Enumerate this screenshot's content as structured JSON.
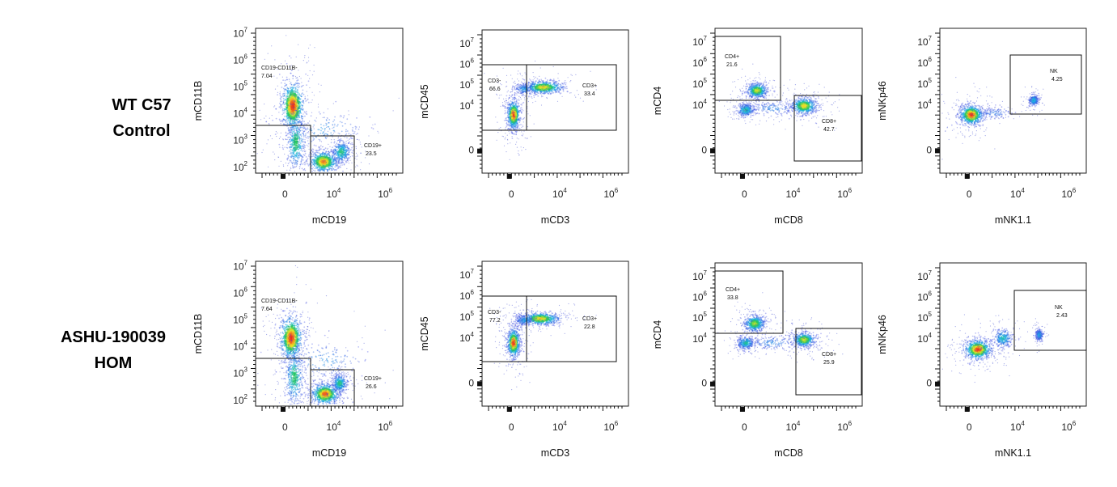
{
  "rows": [
    {
      "label_line1": "WT C57",
      "label_line2": "Control"
    },
    {
      "label_line1": "ASHU-190039",
      "label_line2": "HOM"
    }
  ],
  "chart_data": [
    {
      "type": "scatter",
      "row": 0,
      "panel": 0,
      "xlabel": "mCD19",
      "ylabel": "mCD11B",
      "x_ticks": [
        "0",
        "10^4",
        "10^6"
      ],
      "y_ticks": [
        "10^2",
        "10^3",
        "10^4",
        "10^5",
        "10^6",
        "10^7"
      ],
      "gates": [
        {
          "name": "CD19-CD11B-",
          "value": "7.04"
        },
        {
          "name": "CD19+",
          "value": "23.5"
        }
      ]
    },
    {
      "type": "scatter",
      "row": 0,
      "panel": 1,
      "xlabel": "mCD3",
      "ylabel": "mCD45",
      "x_ticks": [
        "0",
        "10^4",
        "10^6"
      ],
      "y_ticks": [
        "0",
        "10^4",
        "10^5",
        "10^6",
        "10^7"
      ],
      "gates": [
        {
          "name": "CD3-",
          "value": "66.6"
        },
        {
          "name": "CD3+",
          "value": "33.4"
        }
      ]
    },
    {
      "type": "scatter",
      "row": 0,
      "panel": 2,
      "xlabel": "mCD8",
      "ylabel": "mCD4",
      "x_ticks": [
        "0",
        "10^4",
        "10^6"
      ],
      "y_ticks": [
        "0",
        "10^4",
        "10^5",
        "10^6",
        "10^7"
      ],
      "gates": [
        {
          "name": "CD4+",
          "value": "21.6"
        },
        {
          "name": "CD8+",
          "value": "42.7"
        }
      ]
    },
    {
      "type": "scatter",
      "row": 0,
      "panel": 3,
      "xlabel": "mNK1.1",
      "ylabel": "mNKp46",
      "x_ticks": [
        "0",
        "10^4",
        "10^6"
      ],
      "y_ticks": [
        "0",
        "10^4",
        "10^5",
        "10^6",
        "10^7"
      ],
      "gates": [
        {
          "name": "NK",
          "value": "4.25"
        }
      ]
    },
    {
      "type": "scatter",
      "row": 1,
      "panel": 0,
      "xlabel": "mCD19",
      "ylabel": "mCD11B",
      "x_ticks": [
        "0",
        "10^4",
        "10^6"
      ],
      "y_ticks": [
        "10^2",
        "10^3",
        "10^4",
        "10^5",
        "10^6",
        "10^7"
      ],
      "gates": [
        {
          "name": "CD19-CD11B-",
          "value": "7.64"
        },
        {
          "name": "CD19+",
          "value": "26.6"
        }
      ]
    },
    {
      "type": "scatter",
      "row": 1,
      "panel": 1,
      "xlabel": "mCD3",
      "ylabel": "mCD45",
      "x_ticks": [
        "0",
        "10^4",
        "10^6"
      ],
      "y_ticks": [
        "0",
        "10^4",
        "10^5",
        "10^6",
        "10^7"
      ],
      "gates": [
        {
          "name": "CD3-",
          "value": "77.2"
        },
        {
          "name": "CD3+",
          "value": "22.8"
        }
      ]
    },
    {
      "type": "scatter",
      "row": 1,
      "panel": 2,
      "xlabel": "mCD8",
      "ylabel": "mCD4",
      "x_ticks": [
        "0",
        "10^4",
        "10^6"
      ],
      "y_ticks": [
        "0",
        "10^4",
        "10^5",
        "10^6",
        "10^7"
      ],
      "gates": [
        {
          "name": "CD4+",
          "value": "33.8"
        },
        {
          "name": "CD8+",
          "value": "25.9"
        }
      ]
    },
    {
      "type": "scatter",
      "row": 1,
      "panel": 3,
      "xlabel": "mNK1.1",
      "ylabel": "mNKp46",
      "x_ticks": [
        "0",
        "10^4",
        "10^6"
      ],
      "y_ticks": [
        "0",
        "10^4",
        "10^5",
        "10^6",
        "10^7"
      ],
      "gates": [
        {
          "name": "NK",
          "value": "2.43"
        }
      ]
    }
  ]
}
